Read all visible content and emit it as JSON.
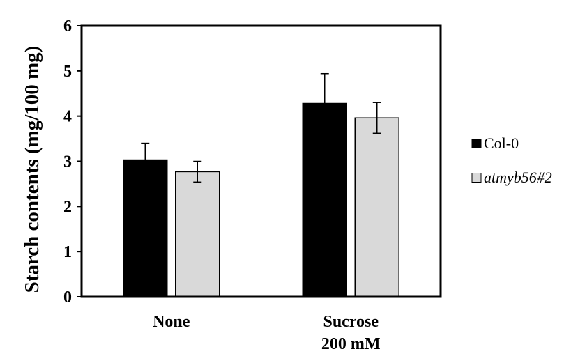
{
  "chart_data": {
    "type": "bar",
    "title": "",
    "xlabel": "",
    "ylabel": "Starch contents (mg/100 mg)",
    "ylim": [
      0,
      6
    ],
    "yticks": [
      0,
      1,
      2,
      3,
      4,
      5,
      6
    ],
    "categories": [
      {
        "lines": [
          "None"
        ]
      },
      {
        "lines": [
          "Sucrose",
          "200 mM"
        ]
      }
    ],
    "series": [
      {
        "name": "Col-0",
        "italic": false,
        "color": "#000000",
        "values": [
          3.03,
          4.28
        ],
        "errors": [
          0.37,
          0.66
        ]
      },
      {
        "name": "atmyb56#2",
        "italic": true,
        "color": "#d9d9d9",
        "values": [
          2.77,
          3.96
        ],
        "errors": [
          0.23,
          0.34
        ]
      }
    ],
    "grid": false,
    "legend_position": "right"
  }
}
